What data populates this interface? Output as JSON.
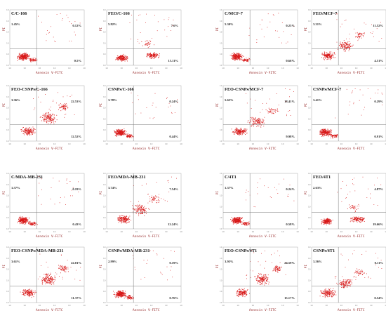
{
  "chart_data": {
    "type": "scatter",
    "x_axis_label": "Annexin V-FITC",
    "y_axis_label": "PI",
    "x_ticks": [
      "10",
      "10",
      "10",
      "10",
      "10",
      "10"
    ],
    "y_ticks": [
      "10",
      "10",
      "10",
      "10",
      "10",
      "10"
    ],
    "color": "#d81818",
    "panels": [
      {
        "title": "C/C-166",
        "ul": "1.45%",
        "ur": "0.12%",
        "lr": "0.5%",
        "pattern": "live"
      },
      {
        "title": "FEO/C-166",
        "ul": "5.82%",
        "ur": "7.6%",
        "lr": "15.11%",
        "pattern": "split"
      },
      {
        "title": "C/MCF-7",
        "ul": "5.30%",
        "ur": "0.25%",
        "lr": "0.66%",
        "pattern": "live"
      },
      {
        "title": "FEO/MCF-7",
        "ul": "3.31%",
        "ur": "11.52%",
        "lr": "4.51%",
        "pattern": "diag"
      },
      {
        "title": "FEO-CSNPs/C-166",
        "ul": "3.36%",
        "ur": "22.53%",
        "lr": "12.52%",
        "pattern": "apop"
      },
      {
        "title": "CSNPs/C-166",
        "ul": "3.78%",
        "ur": "0.24%",
        "lr": "0.44%",
        "pattern": "live"
      },
      {
        "title": "FEO-CSNPs/MCF-7",
        "ul": "5.65%",
        "ur": "18.41%",
        "lr": "9.98%",
        "pattern": "diag"
      },
      {
        "title": "CSNPs/MCF-7",
        "ul": "3.41%",
        "ur": "0.29%",
        "lr": "0.91%",
        "pattern": "live"
      },
      {
        "title": "C/MDA-MB-231",
        "ul": "1.57%",
        "ur": "0.19%",
        "lr": "0.43%",
        "pattern": "live"
      },
      {
        "title": "FEO/MDA-MB-231",
        "ul": "3.74%",
        "ur": "7.54%",
        "lr": "12.24%",
        "pattern": "diag"
      },
      {
        "title": "C/4T1",
        "ul": "1.37%",
        "ur": "0.24%",
        "lr": "0.58%",
        "pattern": "live"
      },
      {
        "title": "FEO/4T1",
        "ul": "2.63%",
        "ur": "4.87%",
        "lr": "19.66%",
        "pattern": "split"
      },
      {
        "title": "FEO-CSNPs/MDA-MB-231",
        "ul": "3.61%",
        "ur": "22.01%",
        "lr": "11.37%",
        "pattern": "apop"
      },
      {
        "title": "CSNPs/MDA-MB-231",
        "ul": "2.99%",
        "ur": "0.19%",
        "lr": "0.76%",
        "pattern": "live"
      },
      {
        "title": "FEO-CSNPs/4T1",
        "ul": "3.93%",
        "ur": "24.59%",
        "lr": "15.17%",
        "pattern": "apop"
      },
      {
        "title": "CSNPs/4T1",
        "ul": "3.56%",
        "ur": "0.11%",
        "lr": "0.54%",
        "pattern": "diag"
      }
    ]
  }
}
